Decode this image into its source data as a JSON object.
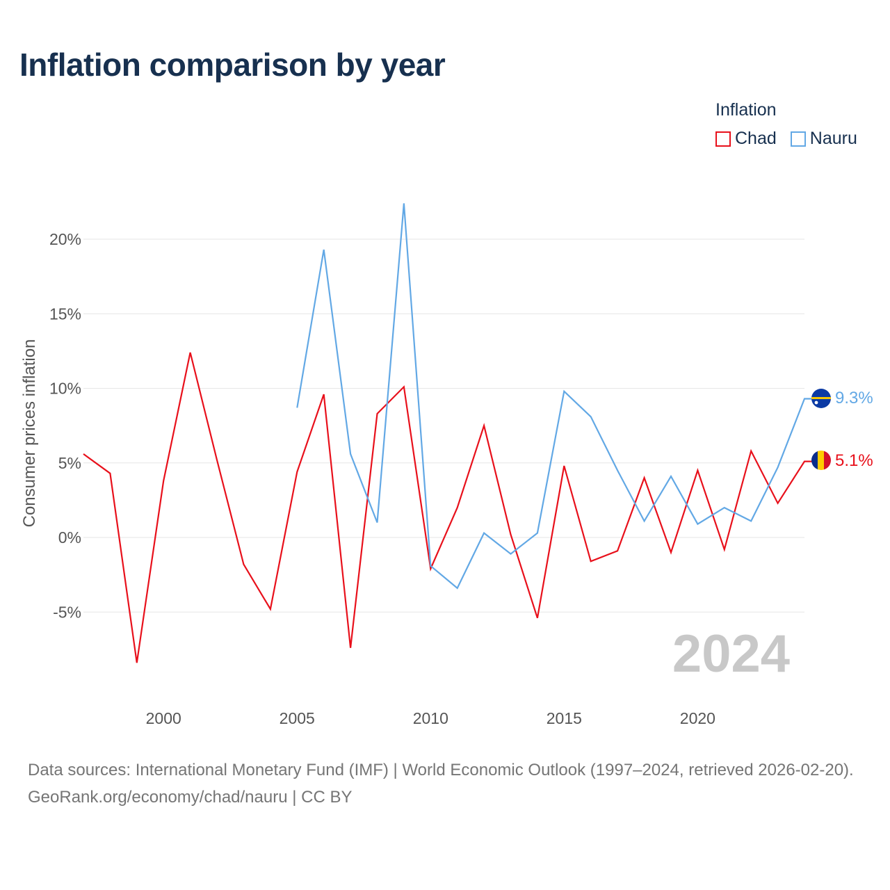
{
  "title": "Inflation comparison by year",
  "legend": {
    "title": "Inflation",
    "items": [
      {
        "label": "Chad",
        "color": "#e8101b"
      },
      {
        "label": "Nauru",
        "color": "#62a8e5"
      }
    ]
  },
  "year_watermark": "2024",
  "end_labels": {
    "chad": "5.1%",
    "nauru": "9.3%"
  },
  "source": {
    "line1": "Data sources: International Monetary Fund (IMF) | World Economic Outlook (1997–2024, retrieved 2026-02-20).",
    "line2": "GeoRank.org/economy/chad/nauru | CC BY"
  },
  "chart_data": {
    "type": "line",
    "title": "Inflation comparison by year",
    "xlabel": "",
    "ylabel": "Consumer prices inflation",
    "xlim": [
      1997,
      2024
    ],
    "ylim": [
      -10,
      25
    ],
    "x_ticks": [
      2000,
      2005,
      2010,
      2015,
      2020
    ],
    "y_ticks": [
      -5,
      0,
      5,
      10,
      15,
      20
    ],
    "y_tick_labels": [
      "-5%",
      "0%",
      "5%",
      "10%",
      "15%",
      "20%"
    ],
    "grid": true,
    "legend_position": "top-right",
    "series": [
      {
        "name": "Chad",
        "color": "#e8101b",
        "x": [
          1997,
          1998,
          1999,
          2000,
          2001,
          2002,
          2003,
          2004,
          2005,
          2006,
          2007,
          2008,
          2009,
          2010,
          2011,
          2012,
          2013,
          2014,
          2015,
          2016,
          2017,
          2018,
          2019,
          2020,
          2021,
          2022,
          2023,
          2024
        ],
        "values": [
          5.6,
          4.3,
          -8.4,
          3.8,
          12.4,
          5.2,
          -1.8,
          -4.8,
          4.4,
          9.6,
          -7.4,
          8.3,
          10.1,
          -2.1,
          2.0,
          7.5,
          0.2,
          -5.4,
          4.8,
          -1.6,
          -0.9,
          4.0,
          -1.0,
          4.5,
          -0.8,
          5.8,
          2.3,
          5.1
        ]
      },
      {
        "name": "Nauru",
        "color": "#62a8e5",
        "x": [
          2005,
          2006,
          2007,
          2008,
          2009,
          2010,
          2011,
          2012,
          2013,
          2014,
          2015,
          2016,
          2017,
          2018,
          2019,
          2020,
          2021,
          2022,
          2023,
          2024
        ],
        "values": [
          8.7,
          19.3,
          5.6,
          1.0,
          22.4,
          -1.9,
          -3.4,
          0.3,
          -1.1,
          0.3,
          9.8,
          8.1,
          4.5,
          1.1,
          4.1,
          0.9,
          2.0,
          1.1,
          4.7,
          9.3
        ]
      }
    ]
  }
}
